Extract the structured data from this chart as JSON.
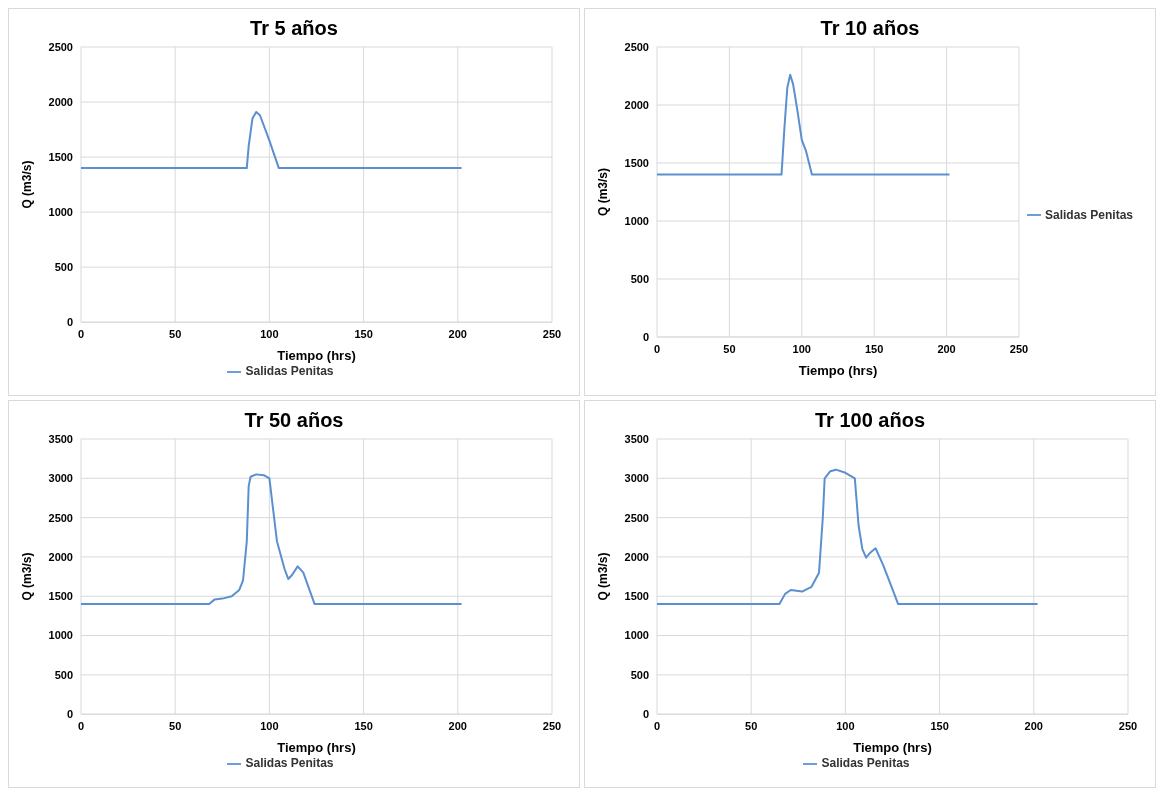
{
  "chart_data": [
    {
      "type": "line",
      "title": "Tr 5 años",
      "xlabel": "Tiempo (hrs)",
      "ylabel": "Q (m3/s)",
      "xlim": [
        0,
        250
      ],
      "xticks": [
        0,
        50,
        100,
        150,
        200,
        250
      ],
      "ylim": [
        0,
        2500
      ],
      "yticks": [
        0,
        500,
        1000,
        1500,
        2000,
        2500
      ],
      "grid": true,
      "legend": "bottom",
      "marker": "none",
      "series": [
        {
          "name": "Salidas Penitas",
          "color": "#5b8fd0",
          "x": [
            0,
            88,
            89,
            91,
            93,
            95,
            100,
            105,
            202
          ],
          "values": [
            1400,
            1400,
            1600,
            1850,
            1910,
            1880,
            1650,
            1400,
            1400
          ]
        }
      ]
    },
    {
      "type": "line",
      "title": "Tr 10 años",
      "xlabel": "Tiempo (hrs)",
      "ylabel": "Q (m3/s)",
      "xlim": [
        0,
        250
      ],
      "xticks": [
        0,
        50,
        100,
        150,
        200,
        250
      ],
      "ylim": [
        0,
        2500
      ],
      "yticks": [
        0,
        500,
        1000,
        1500,
        2000,
        2500
      ],
      "grid": true,
      "legend": "right",
      "marker": "none",
      "series": [
        {
          "name": "Salidas Penitas",
          "color": "#5b8fd0",
          "x": [
            0,
            86,
            88,
            90,
            92,
            94,
            97,
            100,
            103,
            107,
            202
          ],
          "values": [
            1400,
            1400,
            1800,
            2150,
            2260,
            2180,
            1950,
            1700,
            1600,
            1400,
            1400
          ]
        }
      ]
    },
    {
      "type": "line",
      "title": "Tr 50 años",
      "xlabel": "Tiempo (hrs)",
      "ylabel": "Q (m3/s)",
      "xlim": [
        0,
        250
      ],
      "xticks": [
        0,
        50,
        100,
        150,
        200,
        250
      ],
      "ylim": [
        0,
        3500
      ],
      "yticks": [
        0,
        500,
        1000,
        1500,
        2000,
        2500,
        3000,
        3500
      ],
      "grid": true,
      "legend": "bottom",
      "marker": "none",
      "series": [
        {
          "name": "Salidas Penitas",
          "color": "#5b8fd0",
          "x": [
            0,
            68,
            71,
            75,
            80,
            84,
            86,
            88,
            89,
            90,
            93,
            97,
            100,
            102,
            104,
            108,
            110,
            112,
            115,
            118,
            121,
            124,
            202
          ],
          "values": [
            1400,
            1400,
            1460,
            1470,
            1500,
            1580,
            1700,
            2200,
            2900,
            3020,
            3050,
            3040,
            3000,
            2600,
            2200,
            1850,
            1720,
            1770,
            1880,
            1800,
            1600,
            1400,
            1400
          ]
        }
      ]
    },
    {
      "type": "line",
      "title": "Tr 100 años",
      "xlabel": "Tiempo (hrs)",
      "ylabel": "Q (m3/s)",
      "xlim": [
        0,
        250
      ],
      "xticks": [
        0,
        50,
        100,
        150,
        200,
        250
      ],
      "ylim": [
        0,
        3500
      ],
      "yticks": [
        0,
        500,
        1000,
        1500,
        2000,
        2500,
        3000,
        3500
      ],
      "grid": true,
      "legend": "bottom",
      "marker": "none",
      "series": [
        {
          "name": "Salidas Penitas",
          "color": "#5b8fd0",
          "x": [
            0,
            65,
            68,
            71,
            77,
            82,
            86,
            88,
            89,
            92,
            95,
            100,
            105,
            107,
            109,
            111,
            113,
            116,
            120,
            124,
            128,
            202
          ],
          "values": [
            1400,
            1400,
            1530,
            1580,
            1560,
            1620,
            1800,
            2500,
            3000,
            3090,
            3110,
            3070,
            3000,
            2400,
            2100,
            1990,
            2050,
            2110,
            1900,
            1650,
            1400,
            1400
          ]
        }
      ]
    }
  ]
}
